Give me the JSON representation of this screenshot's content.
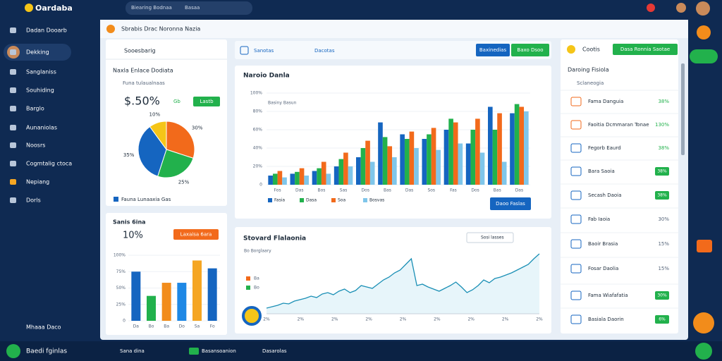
{
  "app": {
    "logo": "Oardaba",
    "search": "Biearing Bodnaa",
    "search_btn": "Basaa"
  },
  "sidebar": {
    "items": [
      "Dadan Dooarb",
      "Dekking",
      "Sanglaniss",
      "Souhiding",
      "Barglo",
      "Aunaniolas",
      "Noosrs",
      "Cogmtalig ctoca",
      "Nepiang",
      "Dorls"
    ],
    "bottom": "Mhaaa Daco",
    "footer": "Baedi fginlas"
  },
  "header": {
    "title": "Sbrabis Drac Noronna Nazia"
  },
  "summary": {
    "title": "Sooesbarig",
    "subtitle": "Naxla Enlace Dodiata",
    "filter": "Funa tulaualnaas",
    "value": "$.50%",
    "delta": "Gb",
    "badge": "Lastb",
    "legend": "Fauna Lunaaxia Gas",
    "pie": {
      "values": [
        30,
        25,
        35,
        10
      ],
      "value_labels": [
        "30%",
        "25%",
        "35%",
        "10%"
      ],
      "colors": [
        "#f26a1b",
        "#22b14c",
        "#1565c0",
        "#f5c518"
      ]
    }
  },
  "sales": {
    "title": "Sanis 6ina",
    "value": "10%",
    "badge": "Laxaisa 6ara",
    "chart": {
      "categories": [
        "Da",
        "Bo",
        "Ba",
        "Do",
        "Sa",
        "Fo"
      ],
      "values": [
        75,
        38,
        58,
        58,
        92,
        80
      ],
      "colors": [
        "#1565c0",
        "#22b14c",
        "#f28c1b",
        "#1e88e5",
        "#f5a623",
        "#1565c0"
      ],
      "ylim": [
        0,
        100
      ],
      "yticks": [
        0,
        {
          "value": 25,
          "label": "25%"
        },
        {
          "value": 50,
          "label": "50%"
        },
        {
          "value": 75,
          "label": "75%"
        },
        {
          "value": 100,
          "label": "100%"
        }
      ]
    }
  },
  "toolbar": {
    "tab1": "Sanotas",
    "tab2": "Dacotas",
    "btn1": "Baxinedias",
    "btn2": "Baxo Dsoo"
  },
  "main_chart": {
    "title": "Naroio Danla",
    "note": "Basiny Basun",
    "button": "Daoo Faslas",
    "categories": [
      "Fos",
      "Das",
      "Bos",
      "Sas",
      "Dos",
      "Bas",
      "Das",
      "Sos",
      "Fas",
      "Dos",
      "Bas",
      "Das"
    ],
    "ylim": [
      0,
      100
    ],
    "yticks": [
      0,
      {
        "value": 20,
        "label": "20%"
      },
      {
        "value": 40,
        "label": "40%"
      },
      {
        "value": 60,
        "label": "60%"
      },
      {
        "value": 80,
        "label": "80%"
      },
      {
        "value": 100,
        "label": "100%"
      }
    ],
    "series": [
      {
        "name": "Fasia",
        "color": "#1565c0",
        "values": [
          10,
          12,
          15,
          20,
          30,
          68,
          55,
          50,
          60,
          45,
          85,
          78
        ]
      },
      {
        "name": "Dasa",
        "color": "#22b14c",
        "values": [
          12,
          14,
          18,
          28,
          40,
          52,
          50,
          55,
          72,
          60,
          60,
          88
        ]
      },
      {
        "name": "Soa",
        "color": "#f26a1b",
        "values": [
          15,
          18,
          25,
          35,
          48,
          42,
          58,
          62,
          68,
          72,
          78,
          85
        ]
      },
      {
        "name": "Bosvas",
        "color": "#7fc6ea",
        "values": [
          8,
          10,
          12,
          20,
          25,
          30,
          40,
          38,
          45,
          35,
          25,
          80
        ]
      }
    ]
  },
  "line_chart": {
    "title": "Stovard Flalaonia",
    "subtitle": "Bo Borglaary",
    "select": "Sosi lasses",
    "labels": [
      "Ba",
      "Bo"
    ],
    "categories": [
      "2%",
      "2%",
      "2%",
      "2%",
      "2%",
      "2%",
      "2%",
      "2%",
      "2%"
    ],
    "ylim": [
      0,
      100
    ],
    "color": "#1a8fb5",
    "values": [
      8,
      10,
      12,
      15,
      14,
      18,
      20,
      22,
      25,
      23,
      28,
      30,
      27,
      32,
      35,
      30,
      33,
      40,
      38,
      36,
      42,
      48,
      52,
      58,
      62,
      70,
      78,
      40,
      42,
      38,
      35,
      32,
      36,
      40,
      45,
      38,
      30,
      34,
      40,
      48,
      44,
      50,
      52,
      55,
      58,
      62,
      66,
      70,
      78,
      85
    ]
  },
  "right": {
    "title": "Cootis",
    "button": "Dasa Ronnia Saotae",
    "section": "Daroing Fisiola",
    "filter": "Sclaneogia",
    "items": [
      {
        "label": "Fama Danguia",
        "value": "38%",
        "badge": false
      },
      {
        "label": "Faoitia Dcmmaran Tonae",
        "value": "130%",
        "badge": false
      },
      {
        "label": "Fegorb Eaurd",
        "value": "38%",
        "badge": false
      },
      {
        "label": "Bara Saoia",
        "value": "38%",
        "badge": true
      },
      {
        "label": "Secash Daoia",
        "value": "38%",
        "badge": true
      },
      {
        "label": "Fab Iaoia",
        "value": "30%",
        "badge": false
      },
      {
        "label": "Baoir Brasia",
        "value": "15%",
        "badge": false
      },
      {
        "label": "Fosar Daolia",
        "value": "15%",
        "badge": false
      },
      {
        "label": "Fama Wiafafatia",
        "value": "30%",
        "badge": true
      },
      {
        "label": "Basiala Daorin",
        "value": "6%",
        "badge": true
      }
    ]
  },
  "bottom": {
    "item1": "Sana dina",
    "item2": "Basansoanion",
    "item3": "Dasarolas"
  }
}
